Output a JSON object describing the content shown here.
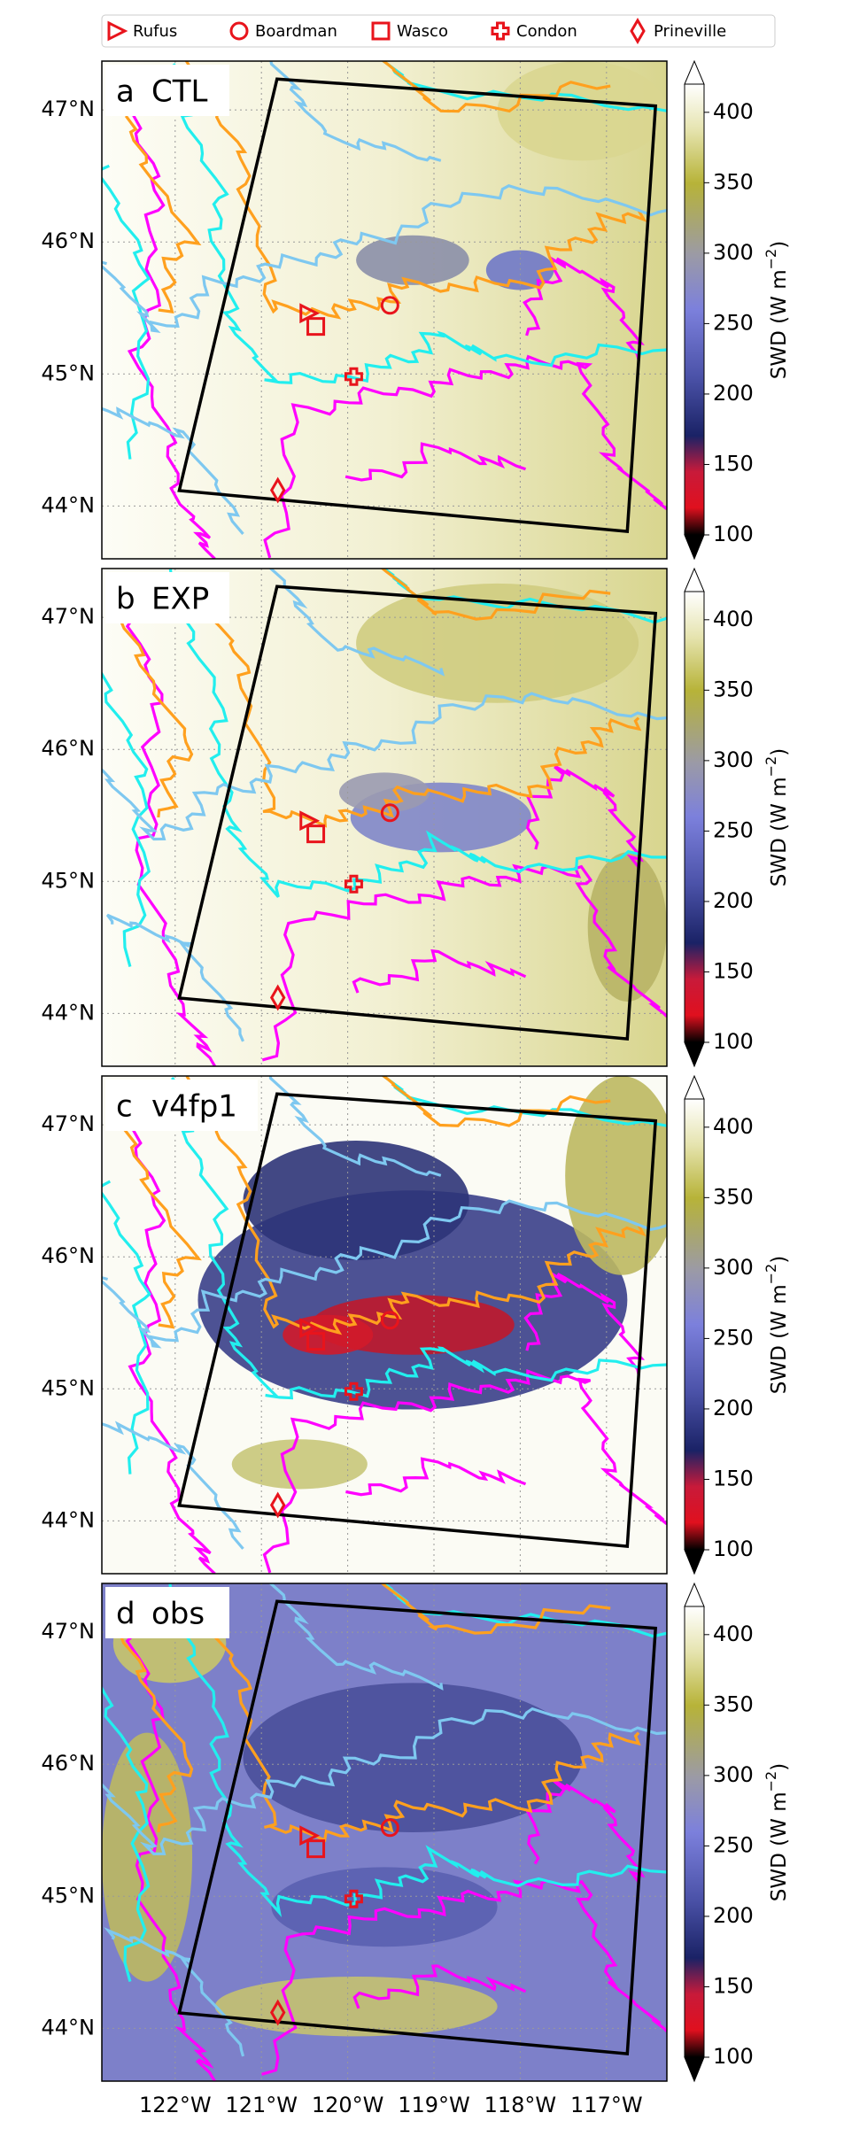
{
  "legend": {
    "items": [
      {
        "label": "Rufus",
        "lon": -120.45,
        "lat": 45.46
      },
      {
        "label": "Boardman",
        "lon": -119.51,
        "lat": 45.52
      },
      {
        "label": "Wasco",
        "lon": -120.37,
        "lat": 45.36
      },
      {
        "label": "Condon",
        "lon": -119.93,
        "lat": 44.98
      },
      {
        "label": "Prineville",
        "lon": -120.81,
        "lat": 44.12
      }
    ]
  },
  "panels": [
    {
      "letter": "a",
      "name": "CTL"
    },
    {
      "letter": "b",
      "name": "EXP"
    },
    {
      "letter": "c",
      "name": "v4fp1"
    },
    {
      "letter": "d",
      "name": "obs"
    }
  ],
  "map": {
    "xlim": [
      -122.85,
      -116.3
    ],
    "ylim": [
      43.6,
      47.37
    ],
    "yticks": [
      {
        "value": 47,
        "label": "47°N"
      },
      {
        "value": 46,
        "label": "46°N"
      },
      {
        "value": 45,
        "label": "45°N"
      },
      {
        "value": 44,
        "label": "44°N"
      }
    ],
    "xticks": [
      {
        "value": -122,
        "label": "122°W"
      },
      {
        "value": -121,
        "label": "121°W"
      },
      {
        "value": -120,
        "label": "120°W"
      },
      {
        "value": -119,
        "label": "119°W"
      },
      {
        "value": -118,
        "label": "118°W"
      },
      {
        "value": -117,
        "label": "117°W"
      }
    ]
  },
  "colorbar": {
    "label": "SWD (W m",
    "label_exp": "−2",
    "label_end": ")",
    "lim": [
      100,
      420
    ],
    "ticks": [
      100,
      150,
      200,
      250,
      300,
      350,
      400
    ]
  }
}
